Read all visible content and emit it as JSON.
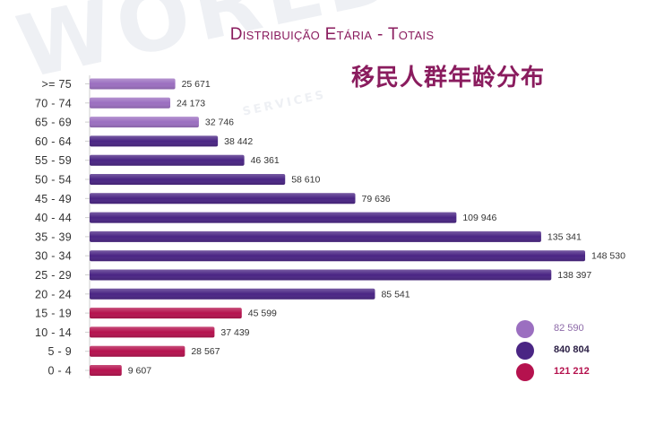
{
  "watermark": {
    "text": "WORLD",
    "sub": "SERVICES"
  },
  "title": "Distribuição Etária - Totais",
  "subtitle": "移民人群年龄分布",
  "colors": {
    "title": "#8a1c5e",
    "elderly": "#9b6fc0",
    "working": "#4a2584",
    "young": "#b5124e"
  },
  "chart_data": {
    "type": "bar",
    "orientation": "horizontal",
    "title": "Distribuição Etária - Totais",
    "subtitle": "移民人群年龄分布",
    "categories": [
      ">= 75",
      "70 - 74",
      "65 - 69",
      "60 - 64",
      "55 - 59",
      "50 - 54",
      "45 - 49",
      "40 - 44",
      "35 - 39",
      "30 - 34",
      "25 - 29",
      "20 - 24",
      "15 - 19",
      "10 - 14",
      "5 - 9",
      "0 - 4"
    ],
    "values": [
      25671,
      24173,
      32746,
      38442,
      46361,
      58610,
      79636,
      109946,
      135341,
      148530,
      138397,
      85541,
      45599,
      37439,
      28567,
      9607
    ],
    "value_labels": [
      "25 671",
      "24 173",
      "32 746",
      "38 442",
      "46 361",
      "58 610",
      "79 636",
      "109 946",
      "135 341",
      "148 530",
      "138 397",
      "85 541",
      "45 599",
      "37 439",
      "28 567",
      "9 607"
    ],
    "groups": [
      "elderly",
      "elderly",
      "elderly",
      "working",
      "working",
      "working",
      "working",
      "working",
      "working",
      "working",
      "working",
      "working",
      "young",
      "young",
      "young",
      "young"
    ],
    "xlim": [
      0,
      155000
    ],
    "grid": false,
    "legend": {
      "placement": "bottom-right",
      "items": [
        {
          "group": "elderly",
          "label": "82 590",
          "value": 82590
        },
        {
          "group": "working",
          "label": "840 804",
          "value": 840804
        },
        {
          "group": "young",
          "label": "121 212",
          "value": 121212
        }
      ]
    }
  }
}
